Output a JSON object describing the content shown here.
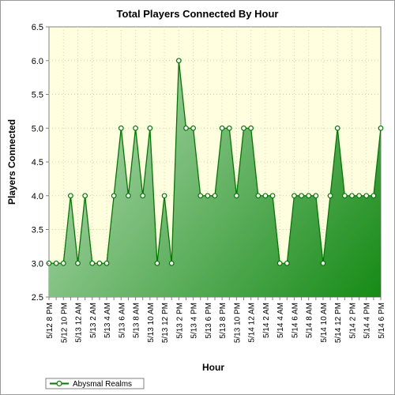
{
  "colors": {
    "plot_background": "#ffffe0",
    "area_light": "#b0d8b0",
    "area_dark": "#008000",
    "line": "#007a00",
    "marker_fill": "#ffffff",
    "grid": "#d4d4a8"
  },
  "chart_data": {
    "type": "area",
    "title": "Total Players Connected By Hour",
    "xlabel": "Hour",
    "ylabel": "Players Connected",
    "ylim": [
      2.5,
      6.5
    ],
    "yticks": [
      "6.5",
      "6.0",
      "5.5",
      "5.0",
      "4.5",
      "4.0",
      "3.5",
      "3.0",
      "2.5"
    ],
    "grid": true,
    "legend_position": "bottom-left",
    "x": [
      "5/12 8 PM",
      "5/12 9 PM",
      "5/12 10 PM",
      "5/12 11 PM",
      "5/13 12 AM",
      "5/13 1 AM",
      "5/13 2 AM",
      "5/13 3 AM",
      "5/13 4 AM",
      "5/13 5 AM",
      "5/13 6 AM",
      "5/13 7 AM",
      "5/13 8 AM",
      "5/13 9 AM",
      "5/13 10 AM",
      "5/13 11 AM",
      "5/13 12 PM",
      "5/13 1 PM",
      "5/13 2 PM",
      "5/13 3 PM",
      "5/13 4 PM",
      "5/13 5 PM",
      "5/13 6 PM",
      "5/13 7 PM",
      "5/13 8 PM",
      "5/13 9 PM",
      "5/13 10 PM",
      "5/13 11 PM",
      "5/14 12 AM",
      "5/14 1 AM",
      "5/14 2 AM",
      "5/14 3 AM",
      "5/14 4 AM",
      "5/14 5 AM",
      "5/14 6 AM",
      "5/14 7 AM",
      "5/14 8 AM",
      "5/14 9 AM",
      "5/14 10 AM",
      "5/14 11 AM",
      "5/14 12 PM",
      "5/14 1 PM",
      "5/14 2 PM",
      "5/14 3 PM",
      "5/14 4 PM",
      "5/14 5 PM",
      "5/14 6 PM"
    ],
    "xtick_labels": [
      "5/12 8 PM",
      "5/12 10 PM",
      "5/13 12 AM",
      "5/13 2 AM",
      "5/13 4 AM",
      "5/13 6 AM",
      "5/13 8 AM",
      "5/13 10 AM",
      "5/13 12 PM",
      "5/13 2 PM",
      "5/13 4 PM",
      "5/13 6 PM",
      "5/13 8 PM",
      "5/13 10 PM",
      "5/14 12 AM",
      "5/14 2 AM",
      "5/14 4 AM",
      "5/14 6 AM",
      "5/14 8 AM",
      "5/14 10 AM",
      "5/14 12 PM",
      "5/14 2 PM",
      "5/14 4 PM",
      "5/14 6 PM"
    ],
    "series": [
      {
        "name": "Abysmal Realms",
        "values": [
          3,
          3,
          3,
          4,
          3,
          4,
          3,
          3,
          3,
          4,
          5,
          4,
          5,
          4,
          5,
          3,
          4,
          3,
          6,
          5,
          5,
          4,
          4,
          4,
          5,
          5,
          4,
          5,
          5,
          4,
          4,
          4,
          3,
          3,
          4,
          4,
          4,
          4,
          3,
          4,
          5,
          4,
          4,
          4,
          4,
          4,
          5
        ]
      }
    ]
  }
}
